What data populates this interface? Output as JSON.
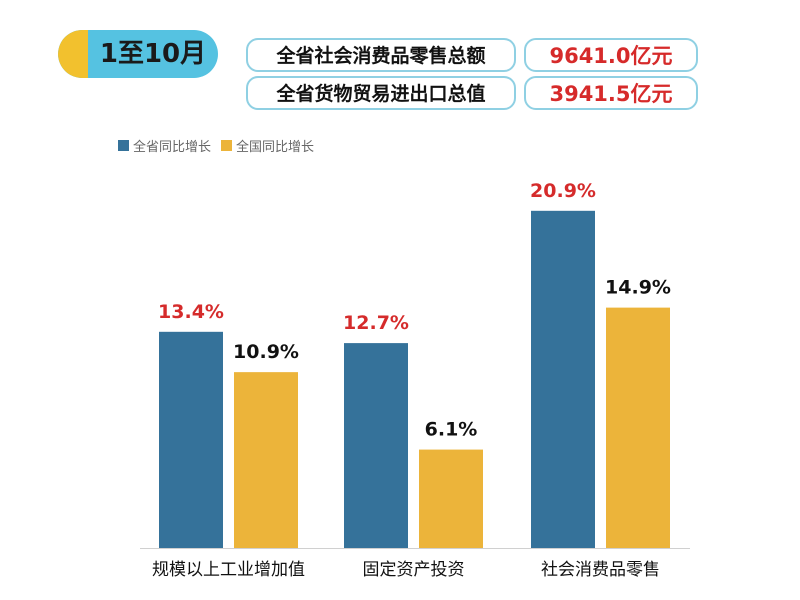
{
  "header": {
    "period": "1至10月",
    "stats": [
      {
        "label": "全省社会消费品零售总额",
        "value": "9641.0亿元"
      },
      {
        "label": "全省货物贸易进出口总值",
        "value": "3941.5亿元"
      }
    ]
  },
  "colors": {
    "province": "#35729a",
    "national": "#ecb43a",
    "province_label": "#d52b2b",
    "national_label": "#111111",
    "badge": "#55c2e1",
    "badge_dot": "#f2c12e"
  },
  "chart_data": {
    "type": "bar",
    "categories": [
      "规模以上工业增加值",
      "固定资产投资",
      "社会消费品零售"
    ],
    "series": [
      {
        "name": "全省同比增长",
        "values": [
          13.4,
          12.7,
          20.9
        ],
        "labels": [
          "13.4%",
          "12.7%",
          "20.9%"
        ]
      },
      {
        "name": "全国同比增长",
        "values": [
          10.9,
          6.1,
          14.9
        ],
        "labels": [
          "10.9%",
          "6.1%",
          "14.9%"
        ]
      }
    ],
    "title": "",
    "xlabel": "",
    "ylabel": "",
    "ylim": [
      0,
      22.5
    ],
    "grid": false,
    "legend_position": "top-left"
  }
}
